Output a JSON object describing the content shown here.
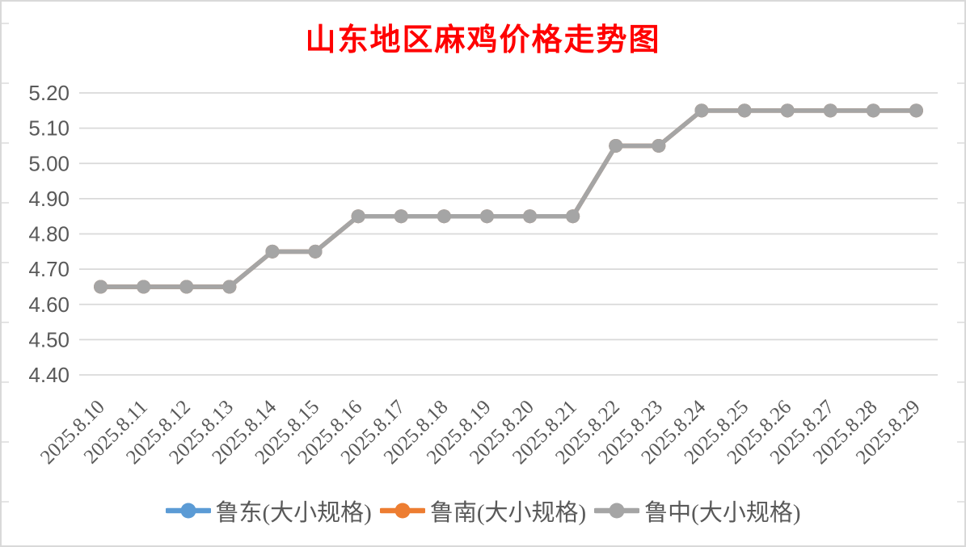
{
  "page": {
    "background": "#FFFFFF",
    "border_color": "#D9D9D9"
  },
  "chart_data": {
    "type": "line",
    "title": "山东地区麻鸡价格走势图",
    "title_color": "#FF0000",
    "categories": [
      "2025.8.10",
      "2025.8.11",
      "2025.8.12",
      "2025.8.13",
      "2025.8.14",
      "2025.8.15",
      "2025.8.16",
      "2025.8.17",
      "2025.8.18",
      "2025.8.19",
      "2025.8.20",
      "2025.8.21",
      "2025.8.22",
      "2025.8.23",
      "2025.8.24",
      "2025.8.25",
      "2025.8.26",
      "2025.8.27",
      "2025.8.28",
      "2025.8.29"
    ],
    "series": [
      {
        "name": "鲁东(大小规格)",
        "color": "#5B9BD5",
        "values": [
          4.65,
          4.65,
          4.65,
          4.65,
          4.75,
          4.75,
          4.85,
          4.85,
          4.85,
          4.85,
          4.85,
          4.85,
          5.05,
          5.05,
          5.15,
          5.15,
          5.15,
          5.15,
          5.15,
          5.15
        ]
      },
      {
        "name": "鲁南(大小规格)",
        "color": "#ED7D31",
        "values": [
          4.65,
          4.65,
          4.65,
          4.65,
          4.75,
          4.75,
          4.85,
          4.85,
          4.85,
          4.85,
          4.85,
          4.85,
          5.05,
          5.05,
          5.15,
          5.15,
          5.15,
          5.15,
          5.15,
          5.15
        ]
      },
      {
        "name": "鲁中(大小规格)",
        "color": "#A5A5A5",
        "values": [
          4.65,
          4.65,
          4.65,
          4.65,
          4.75,
          4.75,
          4.85,
          4.85,
          4.85,
          4.85,
          4.85,
          4.85,
          5.05,
          5.05,
          5.15,
          5.15,
          5.15,
          5.15,
          5.15,
          5.15
        ]
      }
    ],
    "ylim": [
      4.4,
      5.2
    ],
    "ytick_labels": [
      "4.40",
      "4.50",
      "4.60",
      "4.70",
      "4.80",
      "4.90",
      "5.00",
      "5.10",
      "5.20"
    ],
    "xlabel": "",
    "ylabel": "",
    "grid": true,
    "legend_position": "bottom",
    "axis_label_color": "#595959",
    "gridline_color": "#D9D9D9"
  }
}
